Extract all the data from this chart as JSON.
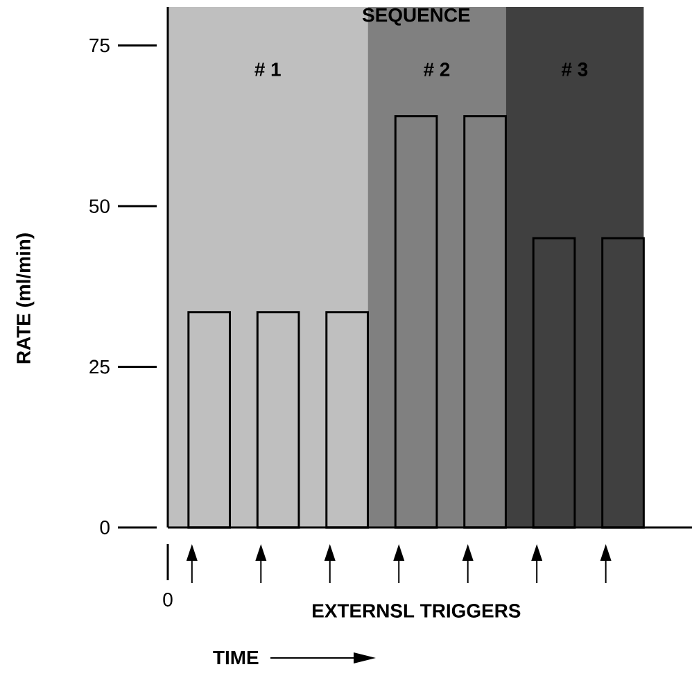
{
  "chart_data": {
    "type": "bar",
    "title": "SEQUENCE",
    "ylabel": "RATE (ml/min)",
    "annotations": [
      "EXTERNSL TRIGGERS",
      "0",
      "TIME",
      "# 1",
      "# 2",
      "# 3"
    ],
    "categories": [
      null,
      null,
      null,
      null,
      null,
      null,
      null
    ],
    "values": [
      33.5,
      33.5,
      33.5,
      64,
      64,
      45,
      45
    ],
    "colors": [
      "#bfbfbf",
      "#bfbfbf",
      "#bfbfbf",
      "#808080",
      "#808080",
      "#404040",
      "#404040"
    ],
    "ylim": [
      0,
      81
    ],
    "yticks": [
      0,
      25,
      50,
      75
    ]
  }
}
